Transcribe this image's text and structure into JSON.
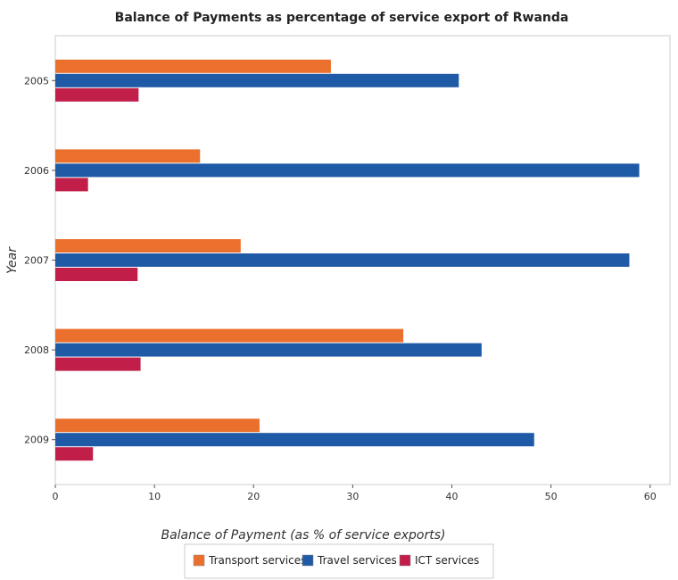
{
  "chart_data": {
    "type": "bar",
    "orientation": "horizontal",
    "title": "Balance of Payments as percentage of service export of Rwanda",
    "xlabel": "Balance of Payment (as % of service exports)",
    "ylabel": "Year",
    "xlim": [
      0,
      62
    ],
    "xticks": [
      0,
      10,
      20,
      30,
      40,
      50,
      60
    ],
    "categories": [
      "2005",
      "2006",
      "2007",
      "2008",
      "2009"
    ],
    "series": [
      {
        "name": "Transport services",
        "color": "#ec702d",
        "values": [
          27.8,
          14.6,
          18.7,
          35.1,
          20.6
        ]
      },
      {
        "name": "Travel services",
        "color": "#1f5aa6",
        "values": [
          40.7,
          58.9,
          57.9,
          43.0,
          48.3
        ]
      },
      {
        "name": "ICT services",
        "color": "#c21e4a",
        "values": [
          8.4,
          3.3,
          8.3,
          8.6,
          3.8
        ]
      }
    ],
    "grid": false,
    "legend_position": "bottom"
  }
}
